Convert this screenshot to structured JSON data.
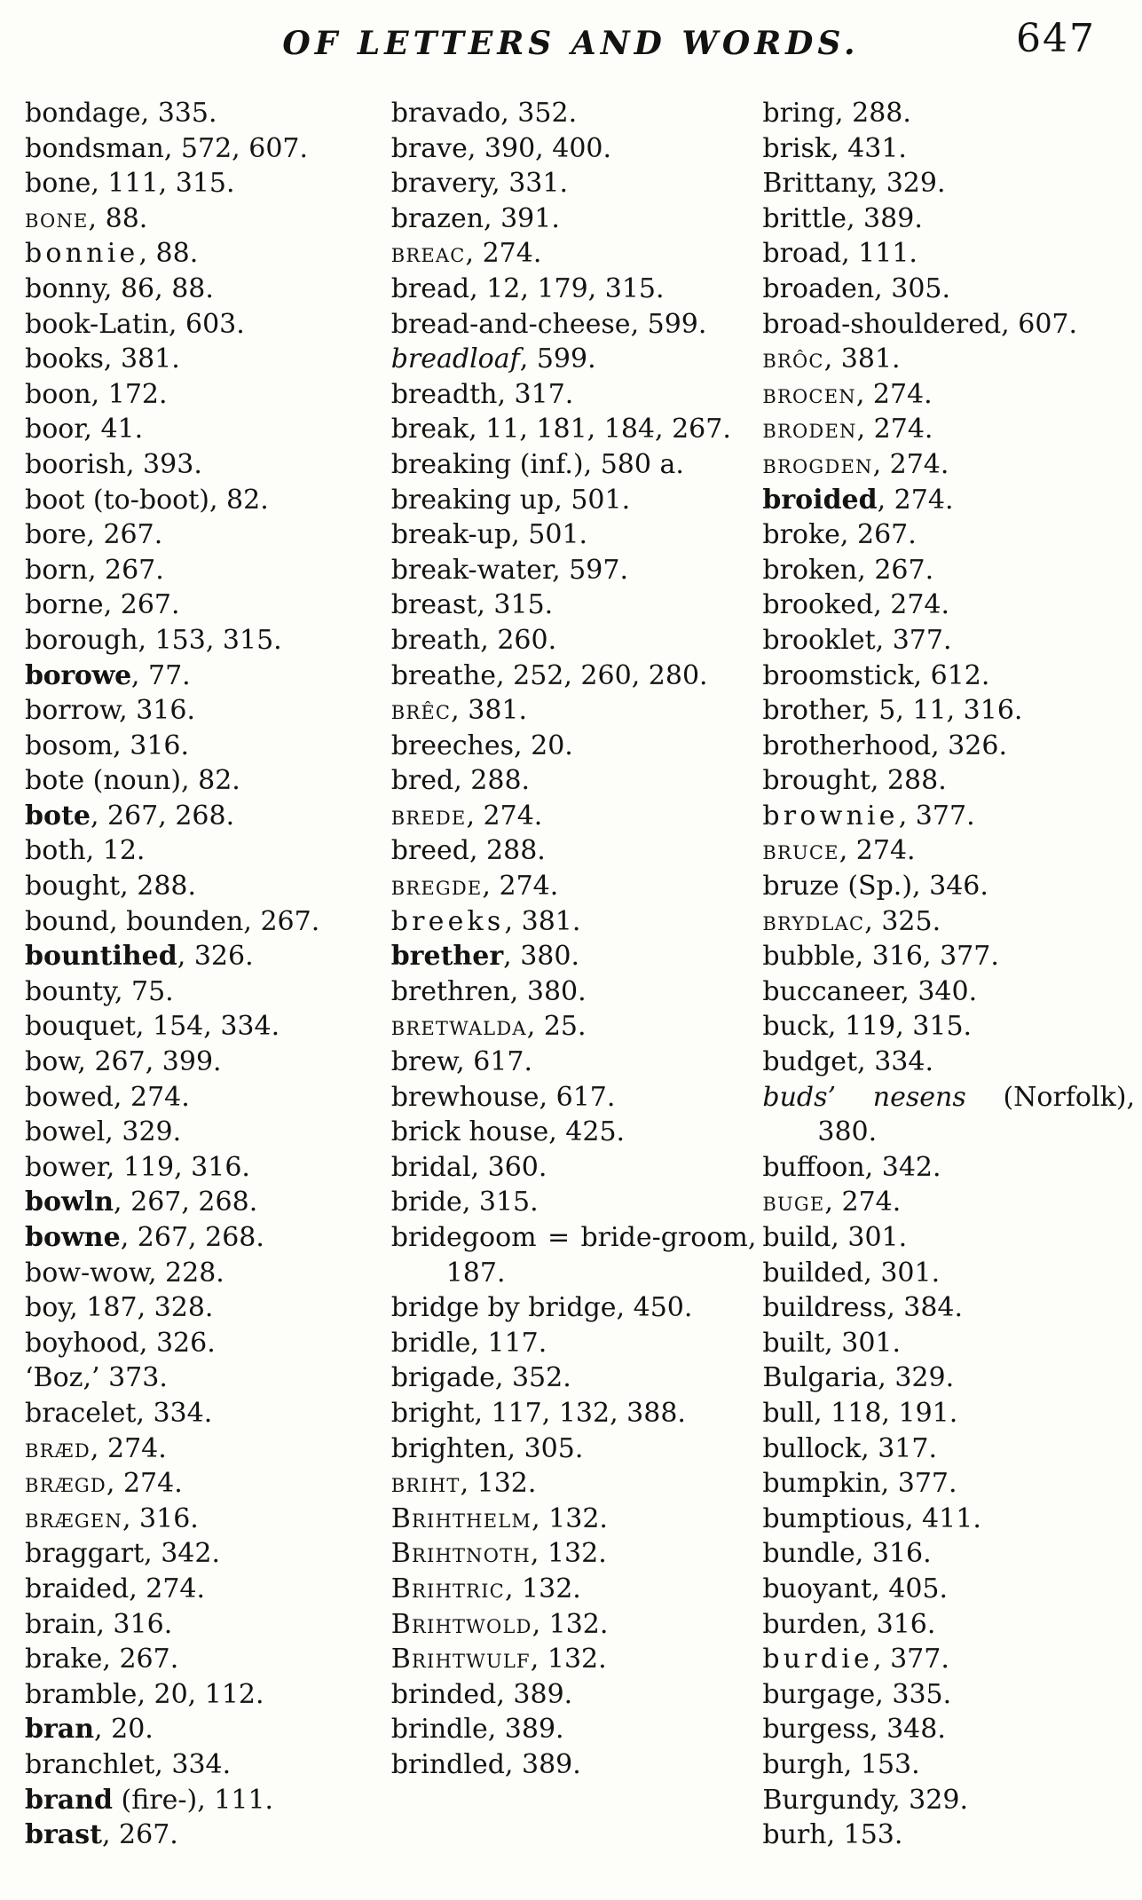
{
  "header": {
    "title": "OF LETTERS AND WORDS.",
    "page_number": "647"
  },
  "columns": [
    {
      "entries": [
        {
          "w": "bondage",
          "r": ", 335.",
          "s": "n"
        },
        {
          "w": "bondsman",
          "r": ", 572, 607.",
          "s": "n"
        },
        {
          "w": "bone",
          "r": ", 111, 315.",
          "s": "n"
        },
        {
          "w": "bone",
          "r": ", 88.",
          "s": "sc"
        },
        {
          "w": "bonnie",
          "r": ", 88.",
          "s": "sp"
        },
        {
          "w": "bonny",
          "r": ", 86, 88.",
          "s": "n"
        },
        {
          "w": "book-Latin",
          "r": ", 603.",
          "s": "n"
        },
        {
          "w": "books",
          "r": ", 381.",
          "s": "n"
        },
        {
          "w": "boon",
          "r": ", 172.",
          "s": "n"
        },
        {
          "w": "boor",
          "r": ", 41.",
          "s": "n"
        },
        {
          "w": "boorish",
          "r": ", 393.",
          "s": "n"
        },
        {
          "w": "boot (to-boot)",
          "r": ", 82.",
          "s": "n"
        },
        {
          "w": "bore",
          "r": ", 267.",
          "s": "n"
        },
        {
          "w": "born",
          "r": ", 267.",
          "s": "n"
        },
        {
          "w": "borne",
          "r": ", 267.",
          "s": "n"
        },
        {
          "w": "borough",
          "r": ", 153, 315.",
          "s": "n"
        },
        {
          "w": "borowe",
          "r": ", 77.",
          "s": "bl"
        },
        {
          "w": "borrow",
          "r": ", 316.",
          "s": "n"
        },
        {
          "w": "bosom",
          "r": ", 316.",
          "s": "n"
        },
        {
          "w": "bote (noun)",
          "r": ", 82.",
          "s": "n"
        },
        {
          "w": "bote",
          "r": ", 267, 268.",
          "s": "b"
        },
        {
          "w": "both",
          "r": ", 12.",
          "s": "n"
        },
        {
          "w": "bought",
          "r": ", 288.",
          "s": "n"
        },
        {
          "w": "bound, bounden",
          "r": ", 267.",
          "s": "n"
        },
        {
          "w": "bountihed",
          "r": ", 326.",
          "s": "b"
        },
        {
          "w": "bounty",
          "r": ", 75.",
          "s": "n"
        },
        {
          "w": "bouquet",
          "r": ", 154, 334.",
          "s": "n"
        },
        {
          "w": "bow",
          "r": ", 267, 399.",
          "s": "n"
        },
        {
          "w": "bowed",
          "r": ", 274.",
          "s": "n"
        },
        {
          "w": "bowel",
          "r": ", 329.",
          "s": "n"
        },
        {
          "w": "bower",
          "r": ", 119, 316.",
          "s": "n"
        },
        {
          "w": "bowln",
          "r": ", 267, 268.",
          "s": "b"
        },
        {
          "w": "bowne",
          "r": ", 267, 268.",
          "s": "b"
        },
        {
          "w": "bow-wow",
          "r": ", 228.",
          "s": "n"
        },
        {
          "w": "boy",
          "r": ", 187, 328.",
          "s": "n"
        },
        {
          "w": "boyhood",
          "r": ", 326.",
          "s": "n"
        },
        {
          "w": "‘Boz,’",
          "r": " 373.",
          "s": "n"
        },
        {
          "w": "bracelet",
          "r": ", 334.",
          "s": "n"
        },
        {
          "w": "bræd",
          "r": ", 274.",
          "s": "sc"
        },
        {
          "w": "brægd",
          "r": ", 274.",
          "s": "sc"
        },
        {
          "w": "brægen",
          "r": ", 316.",
          "s": "sc"
        },
        {
          "w": "braggart",
          "r": ", 342.",
          "s": "n"
        },
        {
          "w": "braided",
          "r": ", 274.",
          "s": "n"
        },
        {
          "w": "brain",
          "r": ", 316.",
          "s": "n"
        },
        {
          "w": "brake",
          "r": ", 267.",
          "s": "n"
        },
        {
          "w": "bramble",
          "r": ", 20, 112.",
          "s": "n"
        },
        {
          "w": "bran",
          "r": ", 20.",
          "s": "b"
        },
        {
          "w": "branchlet",
          "r": ", 334.",
          "s": "n"
        },
        {
          "w": "brand",
          "r": " (fire-), 111.",
          "s": "b"
        },
        {
          "w": "brast",
          "r": ", 267.",
          "s": "b"
        }
      ]
    },
    {
      "entries": [
        {
          "w": "bravado",
          "r": ", 352.",
          "s": "n"
        },
        {
          "w": "brave",
          "r": ", 390, 400.",
          "s": "n"
        },
        {
          "w": "bravery",
          "r": ", 331.",
          "s": "n"
        },
        {
          "w": "brazen",
          "r": ", 391.",
          "s": "n"
        },
        {
          "w": "breac",
          "r": ", 274.",
          "s": "sc"
        },
        {
          "w": "bread",
          "r": ", 12, 179, 315.",
          "s": "n"
        },
        {
          "w": "bread-and-cheese",
          "r": ", 599.",
          "s": "n"
        },
        {
          "w": "breadloaf",
          "r": ", 599.",
          "s": "i"
        },
        {
          "w": "breadth",
          "r": ", 317.",
          "s": "n"
        },
        {
          "w": "break",
          "r": ", 11, 181, 184, 267.",
          "s": "n"
        },
        {
          "w": "breaking (inf.)",
          "r": ", 580 a.",
          "s": "n"
        },
        {
          "w": "breaking up",
          "r": ", 501.",
          "s": "n"
        },
        {
          "w": "break-up",
          "r": ", 501.",
          "s": "n"
        },
        {
          "w": "break-water",
          "r": ", 597.",
          "s": "n"
        },
        {
          "w": "breast",
          "r": ", 315.",
          "s": "n"
        },
        {
          "w": "breath",
          "r": ", 260.",
          "s": "n"
        },
        {
          "w": "breathe",
          "r": ", 252, 260, 280.",
          "s": "n"
        },
        {
          "w": "brêc",
          "r": ", 381.",
          "s": "sc"
        },
        {
          "w": "breeches",
          "r": ", 20.",
          "s": "n"
        },
        {
          "w": "bred",
          "r": ", 288.",
          "s": "n"
        },
        {
          "w": "brede",
          "r": ", 274.",
          "s": "sc"
        },
        {
          "w": "breed",
          "r": ", 288.",
          "s": "n"
        },
        {
          "w": "bregde",
          "r": ", 274.",
          "s": "sc"
        },
        {
          "w": "breeks",
          "r": ", 381.",
          "s": "sp"
        },
        {
          "w": "brether",
          "r": ", 380.",
          "s": "b"
        },
        {
          "w": "brethren",
          "r": ", 380.",
          "s": "n"
        },
        {
          "w": "bretwalda",
          "r": ", 25.",
          "s": "sc"
        },
        {
          "w": "brew",
          "r": ", 617.",
          "s": "n"
        },
        {
          "w": "brewhouse",
          "r": ", 617.",
          "s": "n"
        },
        {
          "w": "brick house",
          "r": ", 425.",
          "s": "n"
        },
        {
          "w": "bridal",
          "r": ", 360.",
          "s": "n"
        },
        {
          "w": "bride",
          "r": ", 315.",
          "s": "n"
        },
        {
          "w": "bridegoom = bride-groom",
          "r": ", 187.",
          "s": "n"
        },
        {
          "w": "bridge by bridge",
          "r": ", 450.",
          "s": "n"
        },
        {
          "w": "bridle",
          "r": ", 117.",
          "s": "n"
        },
        {
          "w": "brigade",
          "r": ", 352.",
          "s": "n"
        },
        {
          "w": "bright",
          "r": ", 117, 132, 388.",
          "s": "n"
        },
        {
          "w": "brighten",
          "r": ", 305.",
          "s": "n"
        },
        {
          "w": "briht",
          "r": ", 132.",
          "s": "sc"
        },
        {
          "w": "Brihthelm",
          "r": ", 132.",
          "s": "sc"
        },
        {
          "w": "Brihtnoth",
          "r": ", 132.",
          "s": "sc"
        },
        {
          "w": "Brihtric",
          "r": ", 132.",
          "s": "sc"
        },
        {
          "w": "Brihtwold",
          "r": ", 132.",
          "s": "sc"
        },
        {
          "w": "Brihtwulf",
          "r": ", 132.",
          "s": "sc"
        },
        {
          "w": "brinded",
          "r": ", 389.",
          "s": "n"
        },
        {
          "w": "brindle",
          "r": ", 389.",
          "s": "n"
        },
        {
          "w": "brindled",
          "r": ", 389.",
          "s": "n"
        }
      ]
    },
    {
      "entries": [
        {
          "w": "bring",
          "r": ", 288.",
          "s": "n"
        },
        {
          "w": "brisk",
          "r": ", 431.",
          "s": "n"
        },
        {
          "w": "Brittany",
          "r": ", 329.",
          "s": "n"
        },
        {
          "w": "brittle",
          "r": ", 389.",
          "s": "n"
        },
        {
          "w": "broad",
          "r": ", 111.",
          "s": "n"
        },
        {
          "w": "broaden",
          "r": ", 305.",
          "s": "n"
        },
        {
          "w": "broad-shouldered",
          "r": ", 607.",
          "s": "n"
        },
        {
          "w": "brôc",
          "r": ", 381.",
          "s": "sc"
        },
        {
          "w": "brocen",
          "r": ", 274.",
          "s": "sc"
        },
        {
          "w": "broden",
          "r": ", 274.",
          "s": "sc"
        },
        {
          "w": "brogden",
          "r": ", 274.",
          "s": "sc"
        },
        {
          "w": "broided",
          "r": ", 274.",
          "s": "b"
        },
        {
          "w": "broke",
          "r": ", 267.",
          "s": "n"
        },
        {
          "w": "broken",
          "r": ", 267.",
          "s": "n"
        },
        {
          "w": "brooked",
          "r": ", 274.",
          "s": "n"
        },
        {
          "w": "brooklet",
          "r": ", 377.",
          "s": "n"
        },
        {
          "w": "broomstick",
          "r": ", 612.",
          "s": "n"
        },
        {
          "w": "brother",
          "r": ", 5, 11, 316.",
          "s": "n"
        },
        {
          "w": "brotherhood",
          "r": ", 326.",
          "s": "n"
        },
        {
          "w": "brought",
          "r": ", 288.",
          "s": "n"
        },
        {
          "w": "brownie",
          "r": ", 377.",
          "s": "sp"
        },
        {
          "w": "bruce",
          "r": ", 274.",
          "s": "sc"
        },
        {
          "w": "bruze (Sp.)",
          "r": ", 346.",
          "s": "n"
        },
        {
          "w": "brydlac",
          "r": ", 325.",
          "s": "sc"
        },
        {
          "w": "bubble",
          "r": ", 316, 377.",
          "s": "n"
        },
        {
          "w": "buccaneer",
          "r": ", 340.",
          "s": "n"
        },
        {
          "w": "buck",
          "r": ", 119, 315.",
          "s": "n"
        },
        {
          "w": "budget",
          "r": ", 334.",
          "s": "n"
        },
        {
          "w": "buds’ nesens",
          "r": " (Norfolk), 380.",
          "s": "i"
        },
        {
          "w": "buffoon",
          "r": ", 342.",
          "s": "n"
        },
        {
          "w": "buge",
          "r": ", 274.",
          "s": "sc"
        },
        {
          "w": "build",
          "r": ", 301.",
          "s": "n"
        },
        {
          "w": "builded",
          "r": ", 301.",
          "s": "n"
        },
        {
          "w": "buildress",
          "r": ", 384.",
          "s": "n"
        },
        {
          "w": "built",
          "r": ", 301.",
          "s": "n"
        },
        {
          "w": "Bulgaria",
          "r": ", 329.",
          "s": "n"
        },
        {
          "w": "bull",
          "r": ", 118, 191.",
          "s": "n"
        },
        {
          "w": "bullock",
          "r": ", 317.",
          "s": "n"
        },
        {
          "w": "bumpkin",
          "r": ", 377.",
          "s": "n"
        },
        {
          "w": "bumptious",
          "r": ", 411.",
          "s": "n"
        },
        {
          "w": "bundle",
          "r": ", 316.",
          "s": "n"
        },
        {
          "w": "buoyant",
          "r": ", 405.",
          "s": "n"
        },
        {
          "w": "burden",
          "r": ", 316.",
          "s": "n"
        },
        {
          "w": "burdie",
          "r": ", 377.",
          "s": "sp"
        },
        {
          "w": "burgage",
          "r": ", 335.",
          "s": "n"
        },
        {
          "w": "burgess",
          "r": ", 348.",
          "s": "n"
        },
        {
          "w": "burgh",
          "r": ", 153.",
          "s": "n"
        },
        {
          "w": "Burgundy",
          "r": ", 329.",
          "s": "n"
        },
        {
          "w": "burh",
          "r": ", 153.",
          "s": "n"
        }
      ]
    }
  ]
}
